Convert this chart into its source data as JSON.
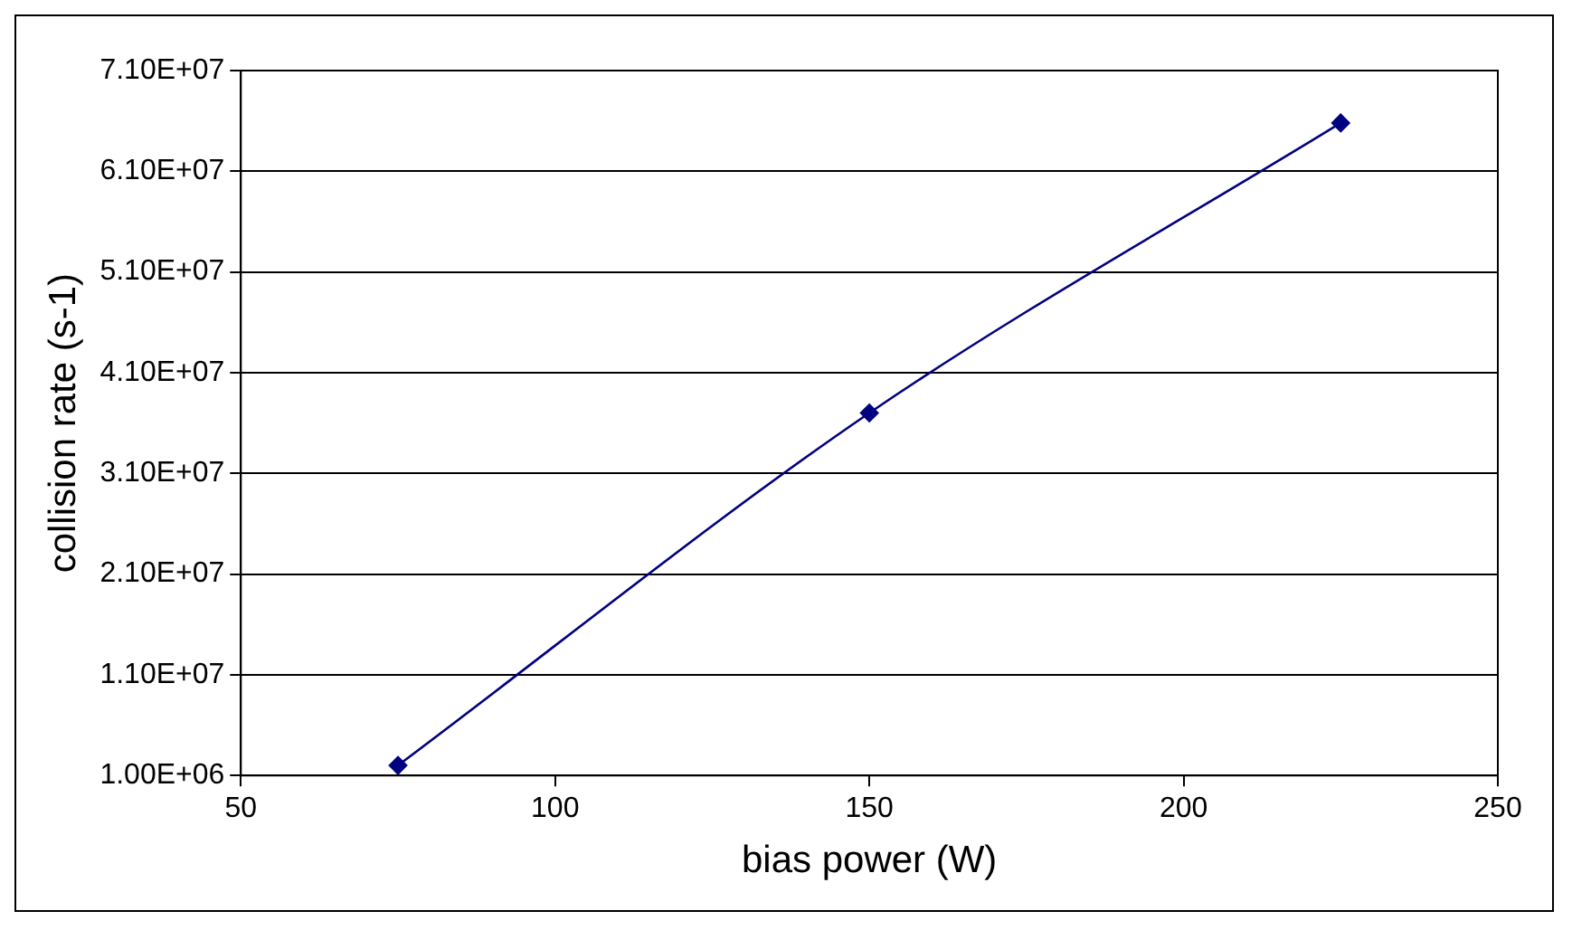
{
  "chart_data": {
    "type": "line",
    "xlabel": "bias power (W)",
    "ylabel": "collision rate (s-1)",
    "x": [
      75,
      150,
      225
    ],
    "series": [
      {
        "color": "#000080",
        "values": [
          2000000,
          37000000,
          65800000
        ]
      }
    ],
    "xlim": [
      50,
      250
    ],
    "xticks": [
      50,
      100,
      150,
      200,
      250
    ],
    "ylim": [
      1000000,
      71000000
    ],
    "yticks": [
      {
        "value": 1000000,
        "label": "1.00E+06"
      },
      {
        "value": 11000000,
        "label": "1.10E+07"
      },
      {
        "value": 21000000,
        "label": "2.10E+07"
      },
      {
        "value": 31000000,
        "label": "3.10E+07"
      },
      {
        "value": 41000000,
        "label": "4.10E+07"
      },
      {
        "value": 51000000,
        "label": "5.10E+07"
      },
      {
        "value": 61000000,
        "label": "6.10E+07"
      },
      {
        "value": 71000000,
        "label": "7.10E+07"
      }
    ],
    "grid": "y",
    "legend": false,
    "marker": "diamond",
    "line_style": "solid"
  }
}
